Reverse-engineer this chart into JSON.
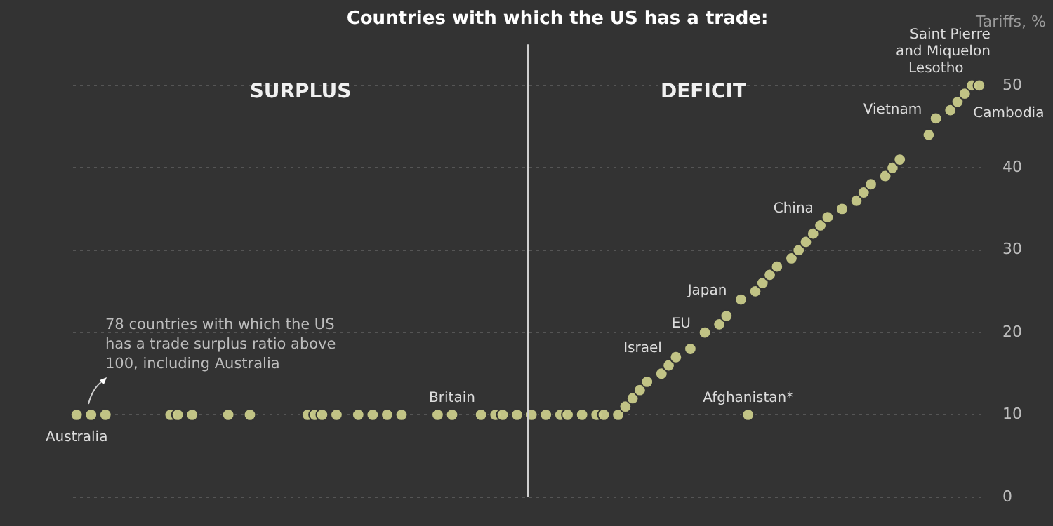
{
  "chart_data": {
    "type": "scatter",
    "title": "Countries with which the US has a trade:",
    "ylabel": "Tariffs, %",
    "categories": [
      null,
      null,
      null,
      null,
      null,
      null,
      null,
      null,
      null,
      null,
      null,
      null,
      null,
      null,
      null,
      null,
      null,
      null,
      null,
      null,
      null,
      null,
      null,
      null,
      null,
      null,
      null,
      null,
      null,
      null,
      null,
      null,
      null,
      null,
      null,
      null,
      null,
      null,
      null,
      null,
      null,
      null,
      null,
      null,
      null,
      null,
      null,
      null,
      null,
      null,
      null,
      null,
      null,
      null,
      null,
      null,
      null,
      null,
      null,
      null,
      null,
      null,
      null,
      null,
      null,
      null,
      null,
      null,
      null,
      null,
      null,
      null,
      null,
      null,
      null,
      null,
      null,
      null,
      null,
      null,
      null,
      null,
      null,
      null,
      null,
      null,
      null,
      null,
      null,
      null,
      null,
      null,
      null,
      null,
      null,
      null,
      null,
      null,
      null,
      null,
      null,
      null,
      null,
      null,
      null,
      null,
      null,
      null,
      null,
      null,
      null,
      null,
      null,
      null,
      null,
      null,
      null,
      null,
      null,
      null,
      null,
      null,
      null,
      null,
      null,
      null
    ],
    "series": [
      {
        "color": "#c9cb8a",
        "values": [
          10,
          null,
          10,
          null,
          10,
          null,
          null,
          null,
          null,
          null,
          null,
          null,
          null,
          10,
          10,
          null,
          10,
          null,
          null,
          null,
          null,
          10,
          null,
          null,
          10,
          null,
          null,
          null,
          null,
          null,
          null,
          null,
          10,
          10,
          10,
          null,
          10,
          null,
          null,
          10,
          null,
          10,
          null,
          10,
          null,
          10,
          null,
          null,
          null,
          null,
          10,
          null,
          10,
          null,
          null,
          null,
          10,
          null,
          10,
          10,
          null,
          10,
          null,
          10,
          null,
          10,
          null,
          10,
          10,
          null,
          10,
          null,
          10,
          10,
          null,
          10,
          11,
          12,
          13,
          14,
          null,
          15,
          16,
          17,
          null,
          18,
          null,
          20,
          null,
          21,
          22,
          null,
          24,
          10,
          25,
          26,
          27,
          28,
          null,
          29,
          30,
          31,
          32,
          33,
          34,
          null,
          35,
          null,
          36,
          37,
          38,
          null,
          39,
          40,
          41,
          null,
          null,
          null,
          44,
          46,
          null,
          47,
          48,
          49,
          50,
          50
        ],
        "value_labels": [
          "Australia",
          null,
          null,
          null,
          null,
          null,
          null,
          null,
          null,
          null,
          null,
          null,
          null,
          null,
          null,
          null,
          null,
          null,
          null,
          null,
          null,
          null,
          null,
          null,
          null,
          null,
          null,
          null,
          null,
          null,
          null,
          null,
          null,
          null,
          null,
          null,
          null,
          null,
          null,
          null,
          null,
          null,
          null,
          null,
          null,
          null,
          null,
          null,
          null,
          null,
          null,
          null,
          "Britain",
          null,
          null,
          null,
          null,
          null,
          null,
          null,
          null,
          null,
          null,
          null,
          null,
          null,
          null,
          null,
          null,
          null,
          null,
          null,
          null,
          null,
          null,
          null,
          null,
          null,
          null,
          null,
          null,
          null,
          null,
          "Israel",
          null,
          null,
          null,
          "EU",
          null,
          null,
          null,
          null,
          "Japan",
          "Afghanistan*",
          null,
          null,
          null,
          null,
          null,
          null,
          null,
          null,
          null,
          null,
          "China",
          null,
          null,
          null,
          null,
          null,
          null,
          null,
          null,
          null,
          null,
          null,
          null,
          null,
          null,
          "Vietnam",
          null,
          null,
          null,
          "Cambodia",
          "Lesotho",
          "Saint Pierre and Miquelon"
        ]
      }
    ],
    "ylim": [
      0,
      55
    ],
    "yticks": [
      0,
      10,
      20,
      30,
      40,
      50
    ],
    "grid": "y",
    "legend": false,
    "marker": "circle",
    "tick_labels": "y",
    "annotations": [
      "SURPLUS",
      "DEFICIT",
      "78 countries with which the US has a trade surplus ratio above 100, including Australia"
    ]
  }
}
